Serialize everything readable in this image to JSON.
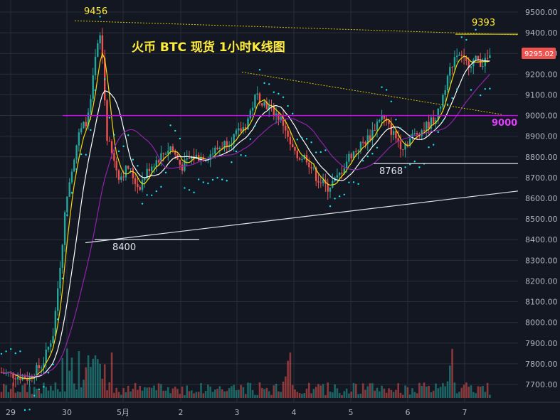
{
  "chart_data": {
    "type": "candlestick",
    "title": "火币 BTC 现货 1小时K线图",
    "current_price_label": "9295.02",
    "y_ticks": [
      "9500.00",
      "9400.00",
      "9300.00",
      "9200.00",
      "9100.00",
      "9000.00",
      "8900.00",
      "8800.00",
      "8700.00",
      "8600.00",
      "8500.00",
      "8400.00",
      "8300.00",
      "8200.00",
      "8100.00",
      "8000.00",
      "7900.00",
      "7800.00",
      "7700.00"
    ],
    "ylim": [
      7600,
      9530
    ],
    "x_ticks": [
      "29",
      "30",
      "5月",
      "2",
      "3",
      "4",
      "5",
      "6",
      "7"
    ],
    "annotations": {
      "peak_high": "9456",
      "recent_high": "9393",
      "low_8400": "8400",
      "low_8768": "8768",
      "level_9000": "9000"
    },
    "levels": {
      "horizontal_9000": 9000,
      "support_8768": 8768,
      "support_8400": 8400
    },
    "colors": {
      "background": "#131722",
      "grid": "#2a2e39",
      "up": "#26a69a",
      "down": "#ef5350",
      "ma_yellow": "#f5d90a",
      "ma_white": "#ffffff",
      "ma_purple": "#8e24aa",
      "sar": "#18e3f0",
      "level_magenta": "#d500f9",
      "trend_yellow": "#d4c300",
      "price_tag": "#ef5350"
    },
    "grid": true,
    "legend": "none"
  }
}
